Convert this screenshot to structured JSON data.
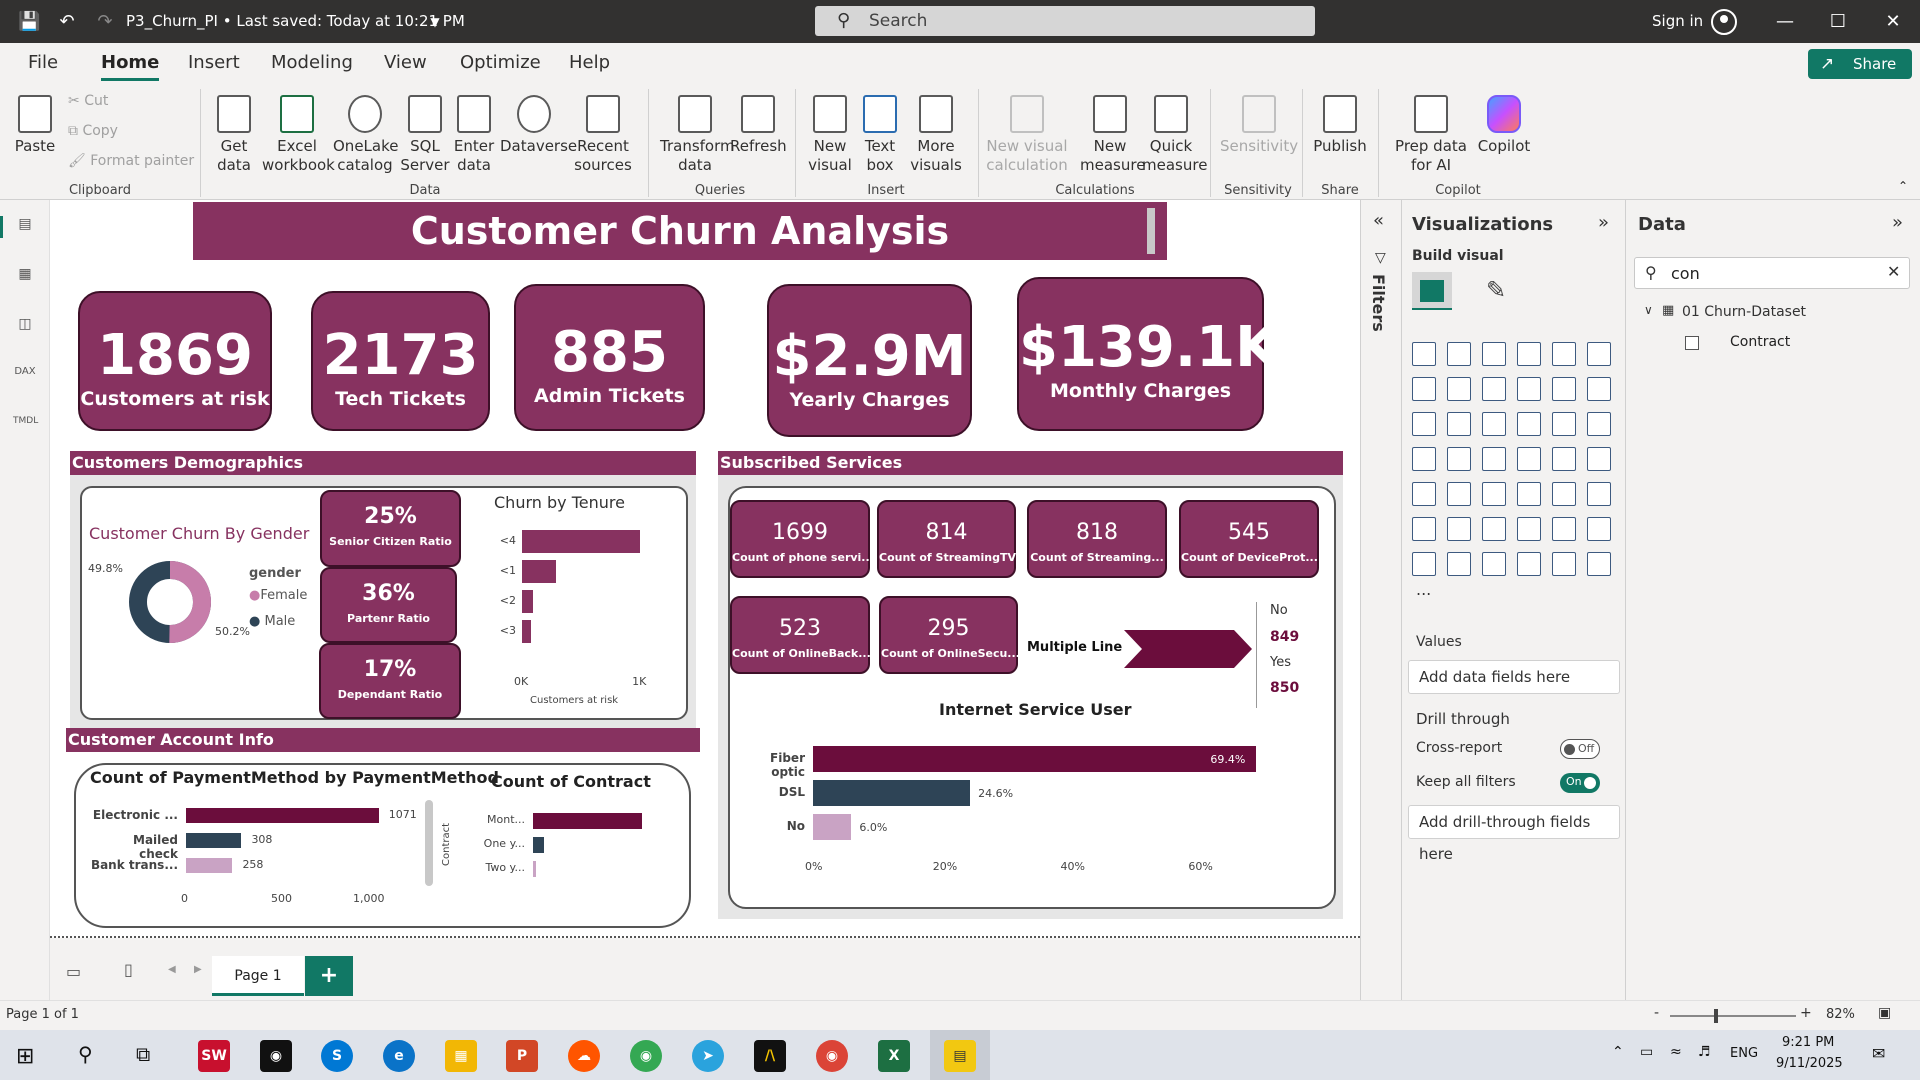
{
  "titlebar": {
    "doc_title": "P3_Churn_PI • Last saved: Today at 10:21 PM",
    "search_placeholder": "Search",
    "sign_in": "Sign in"
  },
  "menu": {
    "tabs": [
      "File",
      "Home",
      "Insert",
      "Modeling",
      "View",
      "Optimize",
      "Help"
    ],
    "share": "Share"
  },
  "ribbon": {
    "paste": "Paste",
    "cut": "Cut",
    "copy": "Copy",
    "format_painter": "Format painter",
    "clipboard": "Clipboard",
    "get_data": "Get data",
    "excel": "Excel workbook",
    "onelake": "OneLake catalog",
    "sql": "SQL Server",
    "enter_data": "Enter data",
    "dataverse": "Dataverse",
    "recent": "Recent sources",
    "data_group": "Data",
    "transform": "Transform data",
    "refresh": "Refresh",
    "queries": "Queries",
    "new_visual": "New visual",
    "text_box": "Text box",
    "more_visuals": "More visuals",
    "insert_group": "Insert",
    "new_visual_calc": "New visual calculation",
    "new_measure": "New measure",
    "quick_measure": "Quick measure",
    "calculations": "Calculations",
    "sensitivity": "Sensitivity",
    "sensitivity_group": "Sensitivity",
    "publish": "Publish",
    "share_group": "Share",
    "prep_data": "Prep data for AI",
    "copilot": "Copilot",
    "copilot_group": "Copilot"
  },
  "report": {
    "title": "Customer Churn Analysis",
    "kpis": [
      {
        "value": "1869",
        "label": "Customers at risk"
      },
      {
        "value": "2173",
        "label": "Tech Tickets"
      },
      {
        "value": "885",
        "label": "Admin Tickets"
      },
      {
        "value": "$2.9M",
        "label": "Yearly Charges"
      },
      {
        "value": "$139.1K",
        "label": "Monthly Charges"
      }
    ],
    "demographics": {
      "header": "Customers Demographics",
      "gender_title": "Customer Churn By Gender",
      "legend_title": "gender",
      "legend_female": "Female",
      "legend_male": "Male",
      "pct_left": "49.8%",
      "pct_right": "50.2%",
      "ratios": [
        {
          "value": "25%",
          "label": "Senior Citizen Ratio"
        },
        {
          "value": "36%",
          "label": "Partenr Ratio"
        },
        {
          "value": "17%",
          "label": "Dependant Ratio"
        }
      ],
      "tenure_title": "Churn by Tenure",
      "tenure_axis": "Customers at risk",
      "tenure_tick0": "0K",
      "tenure_tick1": "1K"
    },
    "services": {
      "header": "Subscribed Services",
      "cards": [
        {
          "value": "1699",
          "label": "Count of phone servi..."
        },
        {
          "value": "814",
          "label": "Count of StreamingTV"
        },
        {
          "value": "818",
          "label": "Count of Streaming..."
        },
        {
          "value": "545",
          "label": "Count of DeviceProt..."
        },
        {
          "value": "523",
          "label": "Count of OnlineBack..."
        },
        {
          "value": "295",
          "label": "Count of OnlineSecu..."
        }
      ],
      "multiple_line": "Multiple Line",
      "ml_no": "No",
      "ml_no_value": "849",
      "ml_yes": "Yes",
      "ml_yes_value": "850",
      "internet_title": "Internet Service User"
    },
    "account": {
      "header": "Customer Account Info",
      "payment_title": "Count of PaymentMethod by PaymentMethod",
      "contract_title": "Count of Contract",
      "contract_axis": "Contract"
    }
  },
  "chart_data": [
    {
      "type": "bar",
      "title": "Churn by Tenure",
      "categories": [
        "<4",
        "<1",
        "<2",
        "<3"
      ],
      "values": [
        1000,
        290,
        90,
        75
      ],
      "xlabel": "Customers at risk",
      "xlim": [
        0,
        1100
      ],
      "ticks": [
        "0K",
        "1K"
      ]
    },
    {
      "type": "pie",
      "title": "Customer Churn By Gender",
      "categories": [
        "Female",
        "Male"
      ],
      "values": [
        50.2,
        49.8
      ],
      "colors": [
        "#c77daa",
        "#2e4456"
      ]
    },
    {
      "type": "bar",
      "title": "Count of PaymentMethod by PaymentMethod",
      "categories": [
        "Electronic ...",
        "Mailed check",
        "Bank trans..."
      ],
      "values": [
        1071,
        308,
        258
      ],
      "data_labels": [
        "1071",
        "308",
        "258"
      ],
      "ticks": [
        "0",
        "500",
        "1,000"
      ],
      "xlim": [
        0,
        1250
      ],
      "colors": [
        "#6b0d3c",
        "#2e4456",
        "#c9a3c4"
      ]
    },
    {
      "type": "bar",
      "title": "Count of Contract",
      "categories": [
        "Mont...",
        "One y...",
        "Two y..."
      ],
      "values": [
        1655,
        166,
        48
      ],
      "xlim": [
        0,
        1900
      ],
      "ylabel": "Contract",
      "colors": [
        "#6b0d3c",
        "#2e4456",
        "#c9a3c4"
      ]
    },
    {
      "type": "bar",
      "title": "Internet Service User",
      "categories": [
        "Fiber optic",
        "DSL",
        "No"
      ],
      "values": [
        69.4,
        24.6,
        6.0
      ],
      "data_labels": [
        "69.4%",
        "24.6%",
        "6.0%"
      ],
      "ticks": [
        "0%",
        "20%",
        "40%",
        "60%"
      ],
      "xlim": [
        0,
        72
      ],
      "colors": [
        "#6b0d3c",
        "#2e4456",
        "#c9a3c4"
      ]
    }
  ],
  "panes": {
    "filters": "Filters",
    "visualizations": "Visualizations",
    "build_visual": "Build visual",
    "values": "Values",
    "add_data": "Add data fields here",
    "drill_through": "Drill through",
    "cross_report": "Cross-report",
    "cross_report_state": "Off",
    "keep_filters": "Keep all filters",
    "keep_filters_state": "On",
    "add_drill": "Add drill-through fields here",
    "data": "Data",
    "data_search": "con",
    "dataset": "01 Churn-Dataset",
    "field": "Contract",
    "more": "..."
  },
  "pagebar": {
    "page_tab": "Page 1",
    "status": "Page 1 of 1",
    "zoom": "82%"
  },
  "taskbar": {
    "lang": "ENG",
    "time": "9:21 PM",
    "date": "9/11/2025"
  },
  "colors": {
    "accent": "#873260",
    "dark_maroon": "#6b0d3c",
    "slate": "#2e4456",
    "pink": "#c77daa",
    "teal": "#117865"
  }
}
